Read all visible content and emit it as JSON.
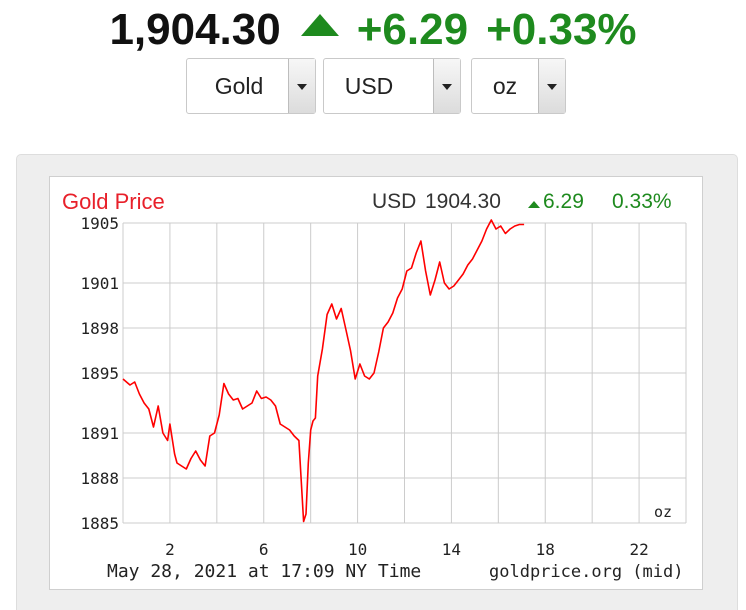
{
  "header": {
    "price": "1,904.30",
    "change": "+6.29",
    "change_pct": "+0.33%",
    "direction_icon": "up-triangle-icon",
    "up_color": "#1e8a1e"
  },
  "selectors": [
    {
      "value": "Gold"
    },
    {
      "value": "USD"
    },
    {
      "value": "oz"
    }
  ],
  "chart_data": {
    "type": "line",
    "title": "Gold Price",
    "title_color": "#e8202a",
    "header_right": {
      "currency": "USD",
      "price": "1904.30",
      "change": "6.29",
      "change_pct": "0.33%"
    },
    "unit_label": "oz",
    "footer_left": "May 28, 2021 at 17:09 NY Time",
    "footer_right": "goldprice.org (mid)",
    "line_color": "#ff0000",
    "grid": true,
    "ylim": [
      1885,
      1905
    ],
    "xlim": [
      0,
      24
    ],
    "y_ticks": [
      "1885",
      "1888",
      "1891",
      "1895",
      "1898",
      "1901",
      "1905"
    ],
    "x_ticks": [
      "2",
      "6",
      "10",
      "14",
      "18",
      "22"
    ],
    "series": [
      {
        "x": [
          0.0,
          0.3,
          0.5,
          0.7,
          0.9,
          1.1,
          1.3,
          1.5,
          1.7,
          1.9,
          2.0,
          2.2,
          2.3,
          2.5,
          2.7,
          2.9,
          3.1,
          3.3,
          3.5,
          3.7,
          3.9,
          4.1,
          4.3,
          4.5,
          4.7,
          4.9,
          5.1,
          5.3,
          5.5,
          5.7,
          5.9,
          6.1,
          6.3,
          6.5,
          6.7,
          6.9,
          7.1,
          7.3,
          7.5,
          7.7,
          7.8,
          7.9,
          8.0,
          8.1,
          8.2,
          8.3,
          8.5,
          8.7,
          8.9,
          9.1,
          9.3,
          9.5,
          9.7,
          9.9,
          10.1,
          10.3,
          10.5,
          10.7,
          10.9,
          11.1,
          11.3,
          11.5,
          11.7,
          11.9,
          12.1,
          12.3,
          12.5,
          12.7,
          12.9,
          13.1,
          13.3,
          13.5,
          13.7,
          13.9,
          14.1,
          14.3,
          14.5,
          14.7,
          14.9,
          15.1,
          15.3,
          15.5,
          15.7,
          15.9,
          16.1,
          16.3,
          16.5,
          16.7,
          16.9,
          17.1
        ],
        "y": [
          1894.6,
          1894.2,
          1894.4,
          1893.6,
          1893.0,
          1892.6,
          1891.4,
          1892.8,
          1891.0,
          1890.5,
          1891.6,
          1889.6,
          1889.0,
          1888.8,
          1888.6,
          1889.3,
          1889.8,
          1889.2,
          1888.8,
          1890.8,
          1891.0,
          1892.2,
          1894.3,
          1893.6,
          1893.2,
          1893.3,
          1892.6,
          1892.8,
          1893.0,
          1893.8,
          1893.3,
          1893.4,
          1893.2,
          1892.8,
          1891.6,
          1891.4,
          1891.2,
          1890.8,
          1890.5,
          1885.1,
          1885.6,
          1889.0,
          1891.2,
          1891.8,
          1892.0,
          1894.8,
          1896.6,
          1898.9,
          1899.6,
          1898.6,
          1899.3,
          1897.9,
          1896.5,
          1894.6,
          1895.6,
          1894.8,
          1894.6,
          1895.0,
          1896.4,
          1898.0,
          1898.4,
          1899.0,
          1900.0,
          1900.6,
          1901.8,
          1902.0,
          1903.0,
          1903.8,
          1901.8,
          1900.2,
          1901.2,
          1902.4,
          1901.0,
          1900.6,
          1900.8,
          1901.2,
          1901.6,
          1902.2,
          1902.6,
          1903.2,
          1903.8,
          1904.6,
          1905.2,
          1904.6,
          1904.8,
          1904.3,
          1904.6,
          1904.8,
          1904.9,
          1904.9
        ]
      }
    ]
  }
}
